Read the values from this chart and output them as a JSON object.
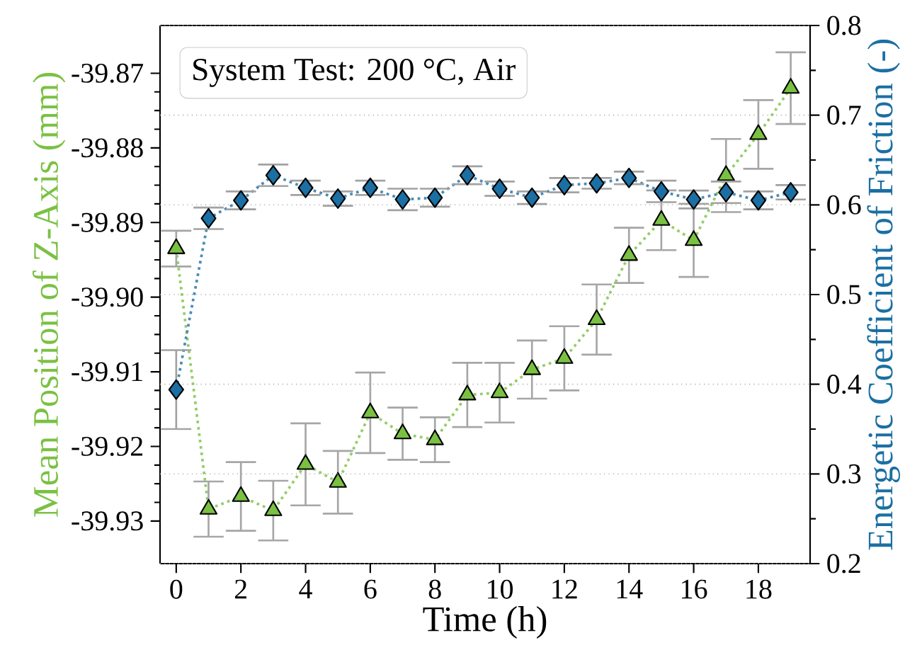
{
  "chart_data": {
    "type": "line",
    "xlabel": "Time (h)",
    "ylabel": "Mean Position of Z-Axis (mm)",
    "y2label": "Energetic Coefficient of Friction (-)",
    "annotations": [
      "System Test: 200 °C, Air"
    ],
    "x": [
      0,
      1,
      2,
      3,
      4,
      5,
      6,
      7,
      8,
      9,
      10,
      11,
      12,
      13,
      14,
      15,
      16,
      17,
      18,
      19
    ],
    "series": [
      {
        "color": "#7ac143",
        "marker": "triangle",
        "values": [
          -39.8935,
          -39.9284,
          -39.9267,
          -39.9286,
          -39.9224,
          -39.9248,
          -39.9155,
          -39.9183,
          -39.9191,
          -39.9131,
          -39.9128,
          -39.9097,
          -39.9082,
          -39.903,
          -39.8944,
          -39.8897,
          -39.8924,
          -39.8837,
          -39.8782,
          -39.872
        ],
        "errors": [
          0.0024,
          0.0037,
          0.0046,
          0.004,
          0.0055,
          0.0042,
          0.0054,
          0.0035,
          0.003,
          0.0043,
          0.004,
          0.0039,
          0.0043,
          0.0047,
          0.0037,
          0.004,
          0.0049,
          0.0049,
          0.0046,
          0.0048
        ]
      },
      {
        "color": "#1b6fa3",
        "marker": "diamond",
        "axis": "y2",
        "values": [
          0.394,
          0.585,
          0.605,
          0.633,
          0.619,
          0.607,
          0.619,
          0.606,
          0.608,
          0.633,
          0.618,
          0.608,
          0.622,
          0.624,
          0.63,
          0.615,
          0.606,
          0.614,
          0.605,
          0.614
        ],
        "errors": [
          0.044,
          0.012,
          0.01,
          0.012,
          0.008,
          0.008,
          0.008,
          0.012,
          0.01,
          0.01,
          0.008,
          0.007,
          0.008,
          0.006,
          0.007,
          0.012,
          0.01,
          0.012,
          0.01,
          0.008
        ]
      }
    ],
    "xlim": [
      -0.5,
      19.6
    ],
    "xticks": [
      0,
      2,
      4,
      6,
      8,
      10,
      12,
      14,
      16,
      18
    ],
    "ylim": [
      -39.9357,
      -39.8636
    ],
    "yticks": [
      -39.93,
      -39.92,
      -39.91,
      {
        "value": -39.9,
        "label": "-39.90"
      },
      -39.89,
      -39.88,
      -39.87
    ],
    "y2lim": [
      0.2,
      0.8
    ],
    "y2ticks": [
      0.2,
      0.3,
      0.4,
      0.5,
      0.6,
      0.7,
      0.8
    ],
    "grid": "y2",
    "line_style": "dotted"
  }
}
